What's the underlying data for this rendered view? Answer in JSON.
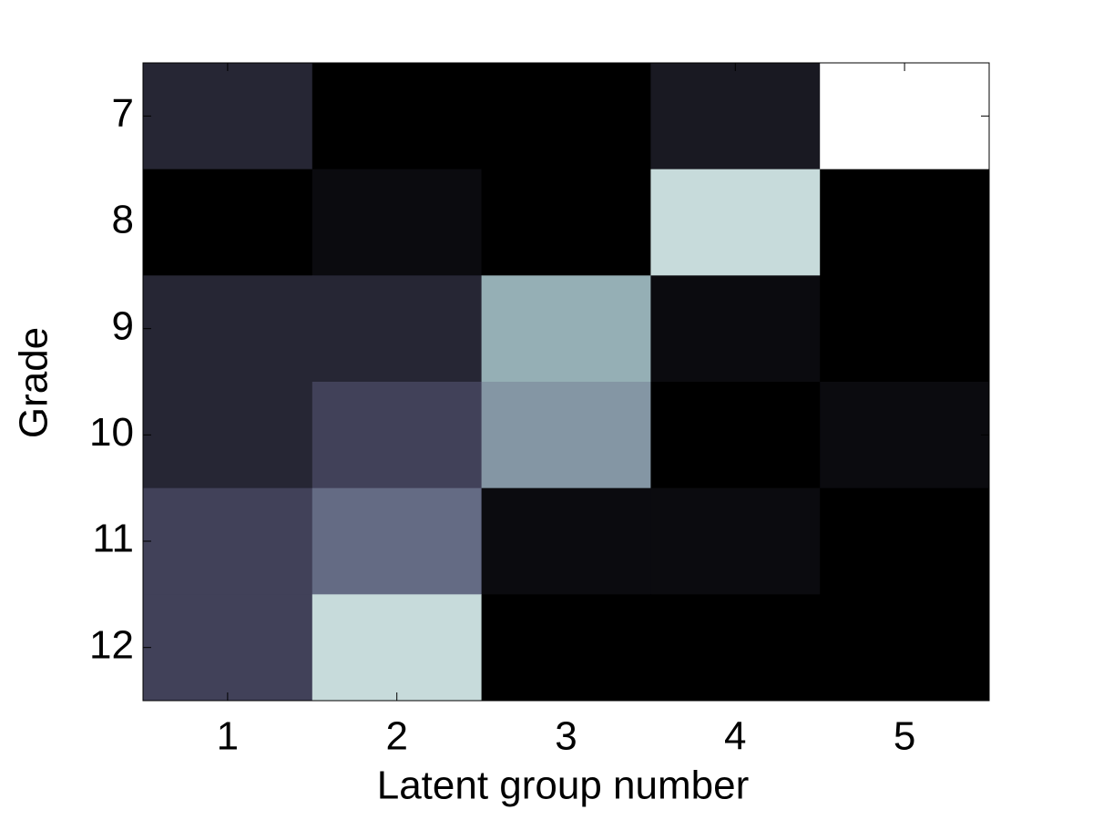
{
  "chart_data": {
    "type": "heatmap",
    "xlabel": "Latent group number",
    "ylabel": "Grade",
    "xlim": [
      0.5,
      5.5
    ],
    "ylim": [
      12.5,
      6.5
    ],
    "xticks": [
      1,
      2,
      3,
      4,
      5
    ],
    "yticks": [
      7,
      8,
      9,
      10,
      11,
      12
    ],
    "colormap": "bone",
    "values": [
      [
        0.17,
        0,
        0,
        0.11,
        1
      ],
      [
        0,
        0.05,
        0,
        0.84,
        0
      ],
      [
        0.17,
        0.17,
        0.67,
        0.05,
        0
      ],
      [
        0.17,
        0.29,
        0.59,
        0,
        0.05
      ],
      [
        0.29,
        0.45,
        0.05,
        0.05,
        0
      ],
      [
        0.29,
        0.84,
        0,
        0,
        0
      ]
    ]
  }
}
